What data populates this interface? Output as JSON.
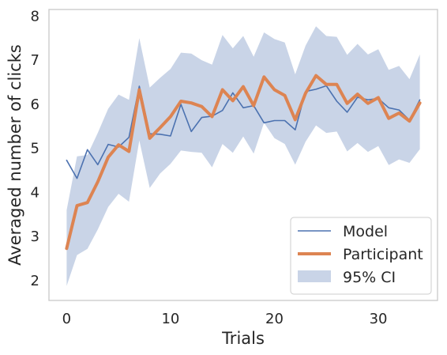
{
  "chart_data": {
    "type": "line",
    "xlabel": "Trials",
    "ylabel": "Averaged number of clicks",
    "xlim": [
      -1.7,
      35.7
    ],
    "ylim": [
      1.55,
      8.15
    ],
    "xticks": [
      0,
      10,
      20,
      30
    ],
    "yticks": [
      2,
      3,
      4,
      5,
      6,
      7,
      8
    ],
    "grid": false,
    "legend_position": "lower-right",
    "x": [
      0,
      1,
      2,
      3,
      4,
      5,
      6,
      7,
      8,
      9,
      10,
      11,
      12,
      13,
      14,
      15,
      16,
      17,
      18,
      19,
      20,
      21,
      22,
      23,
      24,
      25,
      26,
      27,
      28,
      29,
      30,
      31,
      32,
      33,
      34
    ],
    "series": [
      {
        "name": "Model",
        "color": "#4c72b0",
        "values": [
          4.73,
          4.32,
          4.97,
          4.63,
          5.09,
          5.03,
          5.25,
          6.41,
          5.33,
          5.32,
          5.28,
          6.0,
          5.38,
          5.7,
          5.73,
          5.86,
          6.26,
          5.92,
          5.97,
          5.58,
          5.63,
          5.63,
          5.42,
          6.29,
          6.34,
          6.42,
          6.07,
          5.82,
          6.16,
          6.1,
          6.13,
          5.92,
          5.87,
          5.64,
          6.1
        ]
      },
      {
        "name": "Participant",
        "color": "#dd8452",
        "values": [
          2.73,
          3.7,
          3.77,
          4.24,
          4.8,
          5.08,
          4.93,
          6.33,
          5.23,
          5.47,
          5.72,
          6.07,
          6.03,
          5.95,
          5.72,
          6.33,
          6.08,
          6.4,
          5.97,
          6.62,
          6.33,
          6.2,
          5.65,
          6.25,
          6.65,
          6.45,
          6.45,
          6.02,
          6.23,
          6.02,
          6.15,
          5.68,
          5.8,
          5.62,
          6.03
        ]
      }
    ],
    "ci": {
      "name": "95% CI",
      "color": "#4c72b0",
      "lower": [
        1.88,
        2.58,
        2.72,
        3.16,
        3.67,
        3.97,
        3.79,
        5.18,
        4.1,
        4.43,
        4.65,
        4.95,
        4.92,
        4.9,
        4.57,
        5.1,
        4.9,
        5.27,
        4.88,
        5.58,
        5.23,
        5.1,
        4.63,
        5.15,
        5.52,
        5.35,
        5.38,
        4.93,
        5.12,
        4.92,
        5.05,
        4.62,
        4.75,
        4.67,
        4.98
      ],
      "upper": [
        3.6,
        4.82,
        4.85,
        5.35,
        5.9,
        6.22,
        6.1,
        7.5,
        6.38,
        6.6,
        6.8,
        7.17,
        7.15,
        7.0,
        6.9,
        7.57,
        7.27,
        7.55,
        7.08,
        7.63,
        7.48,
        7.4,
        6.68,
        7.33,
        7.77,
        7.55,
        7.53,
        7.12,
        7.37,
        7.13,
        7.25,
        6.78,
        6.87,
        6.57,
        7.13
      ]
    }
  }
}
